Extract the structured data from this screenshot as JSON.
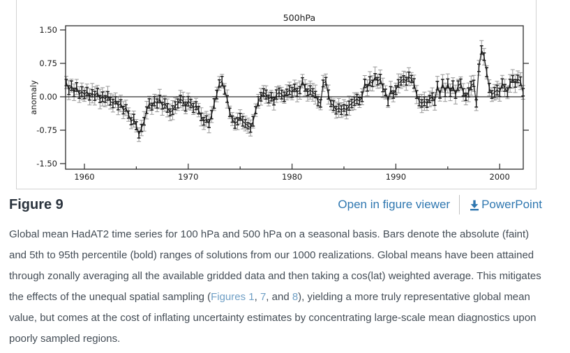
{
  "figure_header": {
    "title": "Figure 9",
    "open_link": "Open in figure viewer",
    "powerpoint_link": "PowerPoint",
    "download_icon": "download-arrow-icon"
  },
  "caption": {
    "part1": "Global mean HadAT2 time series for 100 hPa and 500 hPa on a seasonal basis. Bars denote the absolute (faint) and 5th to 95th percentile (bold) ranges of solutions from our 1000 realizations. Global means have been attained through zonally averaging all the available gridded data and then taking a cos(lat) weighted average. This mitigates the effects of the unequal spatial sampling (",
    "link_figures1": "Figures 1",
    "part2": ", ",
    "link_7": "7",
    "part3": ", and ",
    "link_8": "8",
    "part4": "), yielding a more truly representative global mean value, but comes at the cost of inflating uncertainty estimates by concentrating large-scale mean diagnostics upon poorly sampled regions."
  },
  "colors": {
    "link_blue": "#2f77b0",
    "caption_link": "#6f9fc5",
    "heading": "#2a333d",
    "body_text": "#434c55",
    "border": "#d2d2d2",
    "chart_ink": "#1b1b1b",
    "chart_faint": "#979797"
  },
  "chart_data": {
    "type": "line",
    "title": "500hPa",
    "ylabel": "anomaly",
    "xlabel": "",
    "grid": false,
    "legend": null,
    "xlim": [
      1958.2,
      2002.3
    ],
    "ylim": [
      -1.58,
      1.58
    ],
    "x_start": 1958.25,
    "x_step": 0.25,
    "yticks": [
      {
        "v": 1.5,
        "label": "1.50"
      },
      {
        "v": 0.75,
        "label": "0.75"
      },
      {
        "v": 0.0,
        "label": "0.00"
      },
      {
        "v": -0.75,
        "label": "-0.75"
      },
      {
        "v": -1.5,
        "label": "-1.50"
      }
    ],
    "xticks_major": [
      {
        "v": 1960,
        "label": "1960"
      },
      {
        "v": 1970,
        "label": "1970"
      },
      {
        "v": 1980,
        "label": "1980"
      },
      {
        "v": 1990,
        "label": "1990"
      },
      {
        "v": 2000,
        "label": "2000"
      }
    ],
    "xticks_minor": [
      1965,
      1975,
      1985,
      1995
    ],
    "right_ticks": [
      0.75,
      -0.75
    ],
    "zero_line": 0.0,
    "error_bars": {
      "bold_half": 0.07,
      "bold_var": 0.04,
      "faint_half": 0.14,
      "faint_var": 0.08
    },
    "values": [
      0.32,
      0.15,
      0.25,
      0.1,
      0.22,
      0.05,
      0.12,
      0.05,
      0.12,
      0.0,
      0.08,
      0.02,
      0.1,
      -0.05,
      0.0,
      -0.05,
      0.02,
      -0.1,
      -0.15,
      -0.08,
      -0.2,
      -0.15,
      -0.3,
      -0.25,
      -0.4,
      -0.55,
      -0.5,
      -0.65,
      -0.85,
      -0.7,
      -0.55,
      -0.3,
      -0.15,
      -0.22,
      -0.1,
      -0.15,
      -0.05,
      -0.2,
      -0.15,
      -0.25,
      -0.35,
      -0.3,
      -0.2,
      -0.15,
      -0.05,
      -0.1,
      -0.22,
      -0.1,
      -0.15,
      -0.25,
      -0.2,
      -0.3,
      -0.45,
      -0.55,
      -0.5,
      -0.6,
      -0.4,
      -0.15,
      0.05,
      0.3,
      0.35,
      0.15,
      -0.05,
      -0.35,
      -0.5,
      -0.6,
      -0.55,
      -0.45,
      -0.55,
      -0.6,
      -0.65,
      -0.7,
      -0.55,
      -0.3,
      -0.1,
      0.0,
      0.1,
      0.05,
      -0.05,
      0.0,
      -0.1,
      0.05,
      0.1,
      0.05,
      0.0,
      0.1,
      0.15,
      0.1,
      0.2,
      0.1,
      0.15,
      0.35,
      0.2,
      0.1,
      0.15,
      0.1,
      0.05,
      -0.1,
      -0.15,
      0.3,
      0.35,
      0.05,
      -0.15,
      -0.2,
      -0.3,
      -0.25,
      -0.3,
      -0.25,
      -0.3,
      -0.2,
      -0.15,
      -0.1,
      -0.05,
      -0.1,
      0.0,
      0.3,
      0.2,
      0.35,
      0.3,
      0.45,
      0.35,
      0.4,
      0.2,
      0.1,
      -0.1,
      0.15,
      0.05,
      0.15,
      0.3,
      0.35,
      0.4,
      0.35,
      0.45,
      0.4,
      0.3,
      0.05,
      -0.1,
      -0.15,
      -0.1,
      -0.15,
      -0.05,
      0.0,
      -0.1,
      0.25,
      0.05,
      0.3,
      0.1,
      0.3,
      0.1,
      0.25,
      0.05,
      0.25,
      0.3,
      0.1,
      0.0,
      0.1,
      0.25,
      0.3,
      -0.15,
      0.65,
      1.05,
      0.9,
      0.55,
      0.2,
      0.05,
      0.1,
      0.15,
      0.1,
      0.3,
      0.2,
      0.1,
      0.3,
      0.4,
      0.3,
      0.4,
      0.35,
      0.1
    ]
  }
}
